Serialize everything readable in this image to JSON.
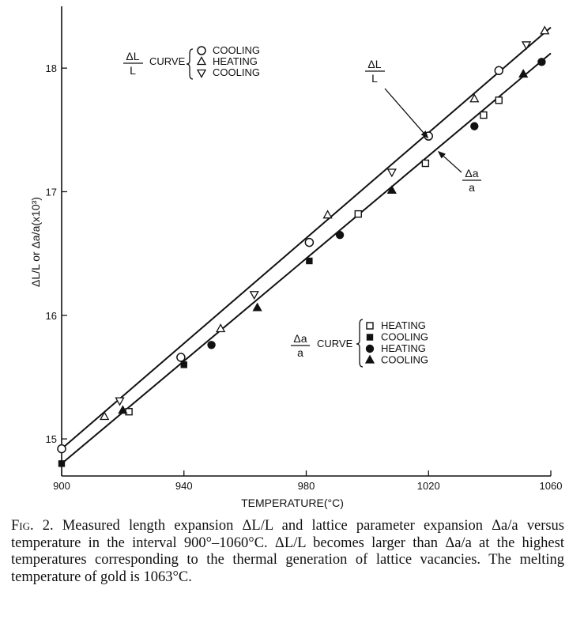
{
  "chart_data": {
    "type": "scatter",
    "title": "",
    "xlabel": "TEMPERATURE(°C)",
    "ylabel": "ΔL/L or Δa/a(x10³)",
    "xlim": [
      900,
      1060
    ],
    "ylim": [
      14.7,
      18.5
    ],
    "xticks": [
      900,
      940,
      980,
      1020,
      1060
    ],
    "yticks": [
      15,
      16,
      17,
      18
    ],
    "grid": false,
    "legend_position": "top-left and lower-right (inset)",
    "lines": [
      {
        "curve": "ΔL/L",
        "x": [
          900,
          1060
        ],
        "y": [
          14.92,
          18.33
        ]
      },
      {
        "curve": "Δa/a",
        "x": [
          900,
          1060
        ],
        "y": [
          14.8,
          18.12
        ]
      }
    ],
    "series": [
      {
        "curve": "ΔL/L",
        "name": "COOLING",
        "marker": "circle-open",
        "x": [
          900,
          939,
          981,
          1020,
          1043
        ],
        "y": [
          14.92,
          15.66,
          16.59,
          17.45,
          17.98
        ]
      },
      {
        "curve": "ΔL/L",
        "name": "HEATING",
        "marker": "triangle-up-open",
        "x": [
          914,
          952,
          987,
          1035,
          1058
        ],
        "y": [
          15.18,
          15.89,
          16.81,
          17.75,
          18.3
        ]
      },
      {
        "curve": "ΔL/L",
        "name": "COOLING",
        "marker": "triangle-down-open",
        "x": [
          919,
          963,
          1008,
          1052
        ],
        "y": [
          15.31,
          16.17,
          17.16,
          18.19
        ]
      },
      {
        "curve": "Δa/a",
        "name": "HEATING",
        "marker": "square-open",
        "x": [
          922,
          997,
          1019,
          1038,
          1043
        ],
        "y": [
          15.22,
          16.82,
          17.23,
          17.62,
          17.74
        ]
      },
      {
        "curve": "Δa/a",
        "name": "COOLING",
        "marker": "square-filled",
        "x": [
          900,
          940,
          981
        ],
        "y": [
          14.8,
          15.6,
          16.44
        ]
      },
      {
        "curve": "Δa/a",
        "name": "HEATING",
        "marker": "circle-filled",
        "x": [
          949,
          991,
          1035,
          1057
        ],
        "y": [
          15.76,
          16.65,
          17.53,
          18.05
        ]
      },
      {
        "curve": "Δa/a",
        "name": "COOLING",
        "marker": "triangle-up-filled",
        "x": [
          920,
          964,
          1008,
          1051
        ],
        "y": [
          15.23,
          16.06,
          17.01,
          17.95
        ]
      }
    ],
    "legends": [
      {
        "curve_label_num": "ΔL",
        "curve_label_den": "L",
        "word": "CURVE",
        "entries": [
          {
            "marker": "circle-open",
            "label": "COOLING"
          },
          {
            "marker": "triangle-up-open",
            "label": "HEATING"
          },
          {
            "marker": "triangle-down-open",
            "label": "COOLING"
          }
        ]
      },
      {
        "curve_label_num": "Δa",
        "curve_label_den": "a",
        "word": "CURVE",
        "entries": [
          {
            "marker": "square-open",
            "label": "HEATING"
          },
          {
            "marker": "square-filled",
            "label": "COOLING"
          },
          {
            "marker": "circle-filled",
            "label": "HEATING"
          },
          {
            "marker": "triangle-up-filled",
            "label": "COOLING"
          }
        ]
      }
    ],
    "annotations": [
      {
        "num": "ΔL",
        "den": "L",
        "points_to": "ΔL/L line",
        "at": [
          1020,
          17.43
        ]
      },
      {
        "num": "Δa",
        "den": "a",
        "points_to": "Δa/a line",
        "at": [
          1023,
          17.33
        ]
      }
    ]
  },
  "caption": {
    "lead": "Fig. 2.",
    "text": "Measured length expansion ΔL/L and lattice parameter expansion Δa/a versus temperature in the interval 900°–1060°C. ΔL/L becomes larger than Δa/a at the highest temperatures corresponding to the thermal generation of lattice vacancies. The melting temperature of gold is 1063°C."
  }
}
